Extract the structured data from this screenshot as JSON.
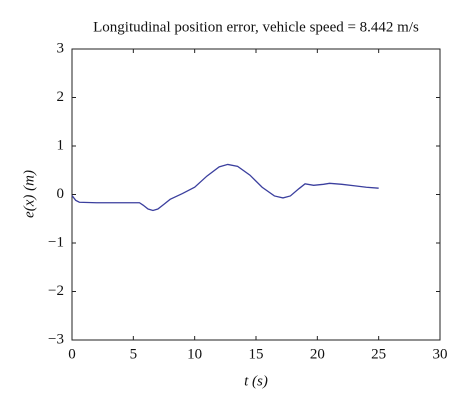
{
  "chart_data": {
    "type": "line",
    "title": "Longitudinal position error, vehicle speed = 8.442 m/s",
    "xlabel": "t (s)",
    "ylabel": "e(x) (m)",
    "xlim": [
      0,
      30
    ],
    "xticks": [
      0,
      5,
      10,
      15,
      20,
      25,
      30
    ],
    "ylim": [
      -3,
      3
    ],
    "yticks": [
      {
        "value": -3,
        "label": "−3"
      },
      {
        "value": -2,
        "label": "−2"
      },
      {
        "value": -1,
        "label": "−1"
      },
      0,
      1,
      2,
      3
    ],
    "grid": false,
    "series": [
      {
        "color": "#3b3f9e",
        "x": [
          0,
          0.3,
          0.6,
          2,
          4,
          5.5,
          5.8,
          6.2,
          6.6,
          7,
          7.5,
          8,
          9,
          10,
          11,
          12,
          12.7,
          13.5,
          14.5,
          15.5,
          16.5,
          17.2,
          17.8,
          18.5,
          19,
          19.7,
          20.5,
          21,
          22,
          23,
          24,
          25
        ],
        "values": [
          -0.02,
          -0.12,
          -0.16,
          -0.17,
          -0.17,
          -0.17,
          -0.22,
          -0.3,
          -0.33,
          -0.3,
          -0.2,
          -0.1,
          0.02,
          0.15,
          0.38,
          0.57,
          0.62,
          0.58,
          0.4,
          0.15,
          -0.03,
          -0.07,
          -0.03,
          0.12,
          0.22,
          0.19,
          0.21,
          0.23,
          0.21,
          0.18,
          0.15,
          0.13
        ]
      }
    ]
  }
}
